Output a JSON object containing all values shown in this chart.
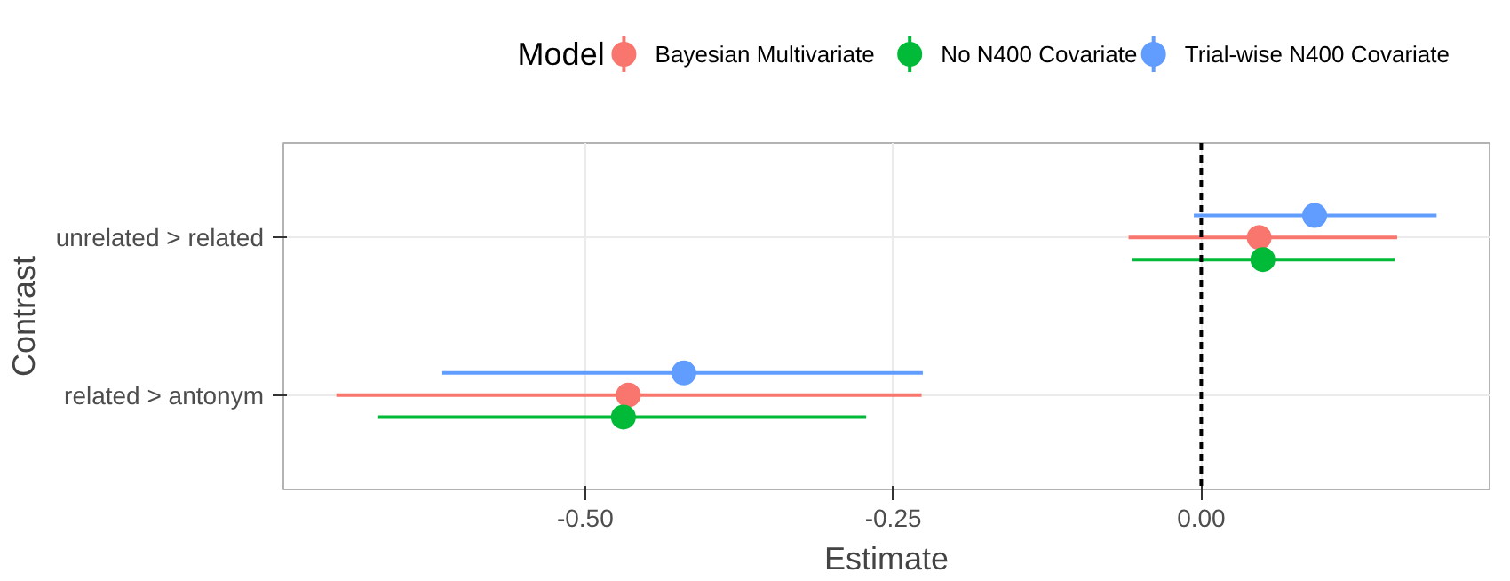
{
  "chart_data": {
    "type": "scatter",
    "orientation": "horizontal",
    "xlabel": "Estimate",
    "ylabel": "Contrast",
    "legend_title": "Model",
    "categories": [
      "unrelated > related",
      "related > antonym"
    ],
    "series": [
      {
        "name": "Bayesian Multivariate",
        "color": "#f8766d",
        "values": [
          0.047,
          -0.465
        ],
        "errors": [
          [
            -0.059,
            0.159
          ],
          [
            -0.702,
            -0.227
          ]
        ]
      },
      {
        "name": "No N400 Covariate",
        "color": "#00ba38",
        "values": [
          0.05,
          -0.469
        ],
        "errors": [
          [
            -0.056,
            0.157
          ],
          [
            -0.668,
            -0.272
          ]
        ]
      },
      {
        "name": "Trial-wise N400 Covariate",
        "color": "#619cff",
        "values": [
          0.092,
          -0.42
        ],
        "errors": [
          [
            -0.006,
            0.191
          ],
          [
            -0.616,
            -0.226
          ]
        ]
      }
    ],
    "xlim": [
      -0.745,
      0.234
    ],
    "xticks": [
      {
        "value": -0.5,
        "label": "-0.50"
      },
      {
        "value": -0.25,
        "label": "-0.25"
      },
      {
        "value": 0,
        "label": "0.00"
      }
    ],
    "ref_lines": [
      {
        "axis": "x",
        "value": 0,
        "color": "#000000",
        "line_style": "dashed"
      }
    ],
    "grid": true,
    "legend": "top",
    "marker": "circle"
  }
}
